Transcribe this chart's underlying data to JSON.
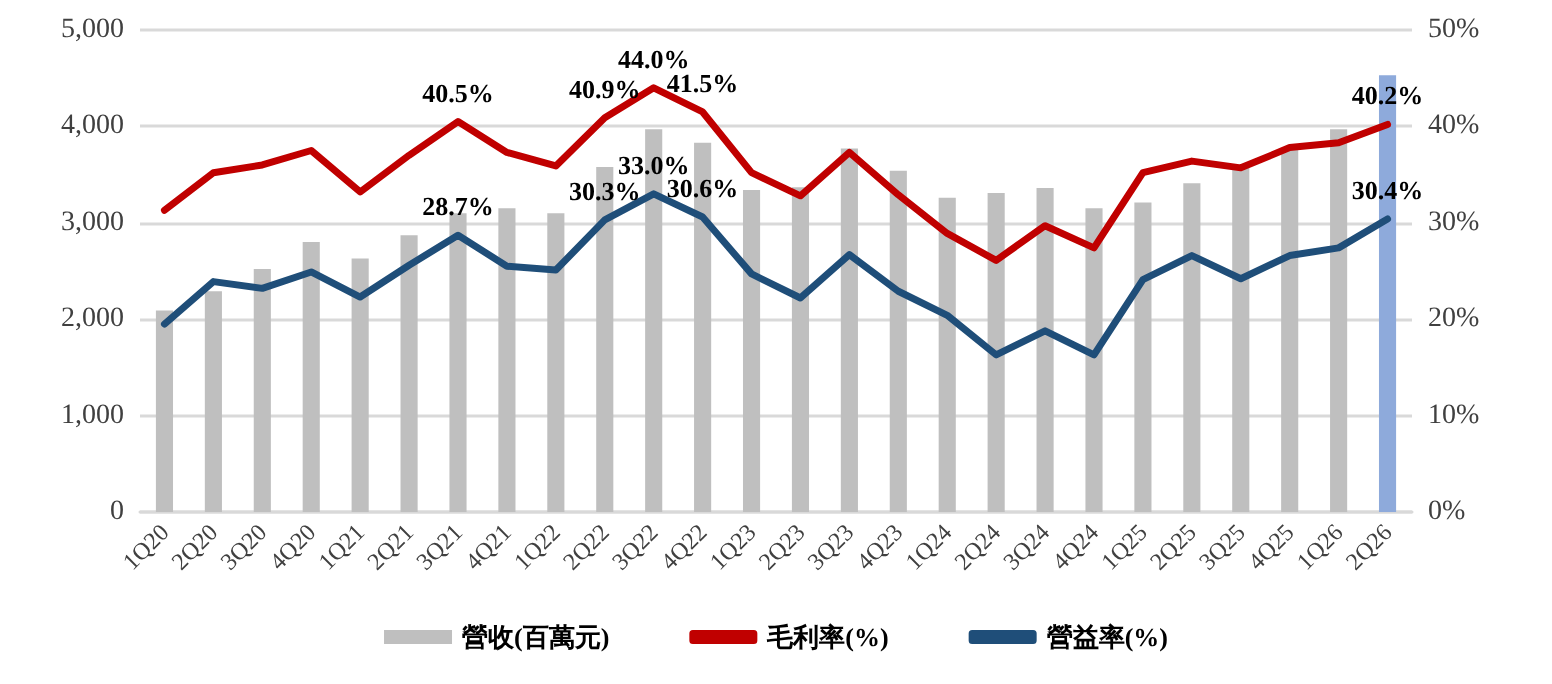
{
  "chart_data": {
    "type": "bar",
    "categories": [
      "1Q20",
      "2Q20",
      "3Q20",
      "4Q20",
      "1Q21",
      "2Q21",
      "3Q21",
      "4Q21",
      "1Q22",
      "2Q22",
      "3Q22",
      "4Q22",
      "1Q23",
      "2Q23",
      "3Q23",
      "4Q23",
      "1Q24",
      "2Q24",
      "3Q24",
      "4Q24",
      "1Q25",
      "2Q25",
      "3Q25",
      "4Q25",
      "1Q26",
      "2Q26"
    ],
    "series": [
      {
        "name": "營收(百萬元)",
        "color": "#bfbfbf",
        "colors": [
          "#bfbfbf",
          "#bfbfbf",
          "#bfbfbf",
          "#bfbfbf",
          "#bfbfbf",
          "#bfbfbf",
          "#bfbfbf",
          "#bfbfbf",
          "#bfbfbf",
          "#bfbfbf",
          "#bfbfbf",
          "#bfbfbf",
          "#bfbfbf",
          "#bfbfbf",
          "#bfbfbf",
          "#bfbfbf",
          "#bfbfbf",
          "#bfbfbf",
          "#bfbfbf",
          "#bfbfbf",
          "#bfbfbf",
          "#bfbfbf",
          "#bfbfbf",
          "#bfbfbf",
          "#bfbfbf",
          "#8eaadb"
        ],
        "values": [
          2090,
          2290,
          2520,
          2800,
          2630,
          2870,
          3100,
          3150,
          3100,
          3580,
          3970,
          3830,
          3340,
          3370,
          3770,
          3540,
          3260,
          3310,
          3360,
          3150,
          3210,
          3410,
          3580,
          3770,
          3970,
          4530
        ]
      },
      {
        "name": "毛利率(%)",
        "type": "line",
        "axis": "y2",
        "color": "#c00000",
        "values": [
          31.3,
          35.2,
          36.0,
          37.5,
          33.2,
          37.0,
          40.5,
          37.3,
          35.9,
          40.9,
          44.0,
          41.5,
          35.2,
          32.8,
          37.3,
          32.9,
          28.9,
          26.1,
          29.7,
          27.4,
          35.2,
          36.4,
          35.7,
          37.8,
          38.3,
          40.2
        ],
        "value_labels": [
          null,
          null,
          null,
          null,
          null,
          null,
          "40.5%",
          null,
          null,
          "40.9%",
          "44.0%",
          "41.5%",
          null,
          null,
          null,
          null,
          null,
          null,
          null,
          null,
          null,
          null,
          null,
          null,
          null,
          "40.2%"
        ]
      },
      {
        "name": "營益率(%)",
        "type": "line",
        "axis": "y2",
        "color": "#1f4e79",
        "values": [
          19.5,
          23.9,
          23.2,
          24.9,
          22.3,
          25.6,
          28.7,
          25.5,
          25.1,
          30.3,
          33.0,
          30.6,
          24.7,
          22.2,
          26.7,
          22.9,
          20.4,
          16.3,
          18.8,
          16.3,
          24.1,
          26.6,
          24.2,
          26.6,
          27.4,
          30.4
        ],
        "value_labels": [
          null,
          null,
          null,
          null,
          null,
          null,
          "28.7%",
          null,
          null,
          "30.3%",
          "33.0%",
          "30.6%",
          null,
          null,
          null,
          null,
          null,
          null,
          null,
          null,
          null,
          null,
          null,
          null,
          null,
          "30.4%"
        ]
      }
    ],
    "ylim": [
      0,
      5000
    ],
    "yticks": [
      0,
      {
        "value": 1000,
        "label": "1,000"
      },
      {
        "value": 2000,
        "label": "2,000"
      },
      {
        "value": 3000,
        "label": "3,000"
      },
      {
        "value": 4000,
        "label": "4,000"
      },
      {
        "value": 5000,
        "label": "5,000"
      }
    ],
    "y2lim": [
      0,
      50
    ],
    "y2ticks": [
      {
        "value": 0,
        "label": "0%"
      },
      {
        "value": 10,
        "label": "10%"
      },
      {
        "value": 20,
        "label": "20%"
      },
      {
        "value": 30,
        "label": "30%"
      },
      {
        "value": 40,
        "label": "40%"
      },
      {
        "value": 50,
        "label": "50%"
      }
    ],
    "grid": "y",
    "legend": "bottom",
    "marker": "none",
    "line_style": "solid"
  }
}
